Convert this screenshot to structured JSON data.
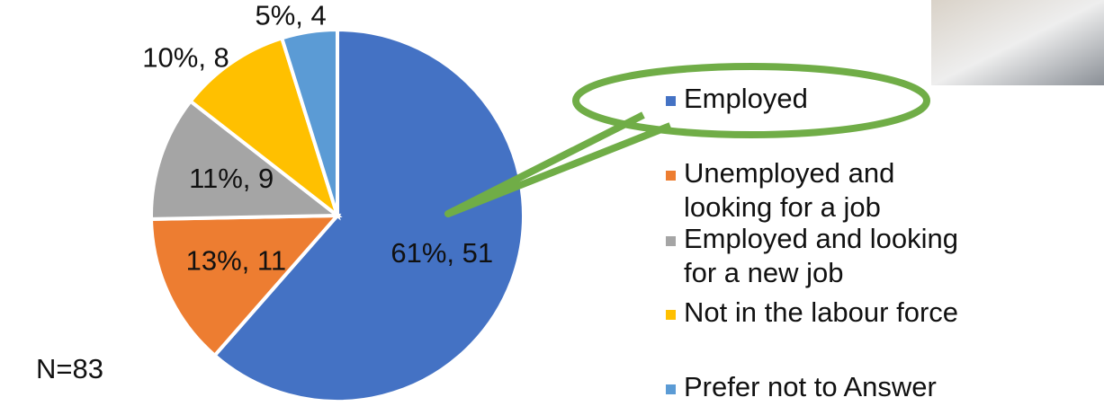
{
  "chart_data": {
    "type": "pie",
    "categories": [
      "Employed",
      "Unemployed and looking for a job",
      "Employed and looking for a new job",
      "Not in the labour force",
      "Prefer not to Answer"
    ],
    "values": [
      51,
      11,
      9,
      8,
      4
    ],
    "value_labels": [
      "61%, 51",
      "13%, 11",
      "11%, 9",
      "10%, 8",
      "5%, 4"
    ],
    "colors": [
      "#4472c4",
      "#ed7d31",
      "#a5a5a5",
      "#ffc000",
      "#5b9bd5"
    ],
    "annotation": "N=83",
    "legend": "right"
  }
}
